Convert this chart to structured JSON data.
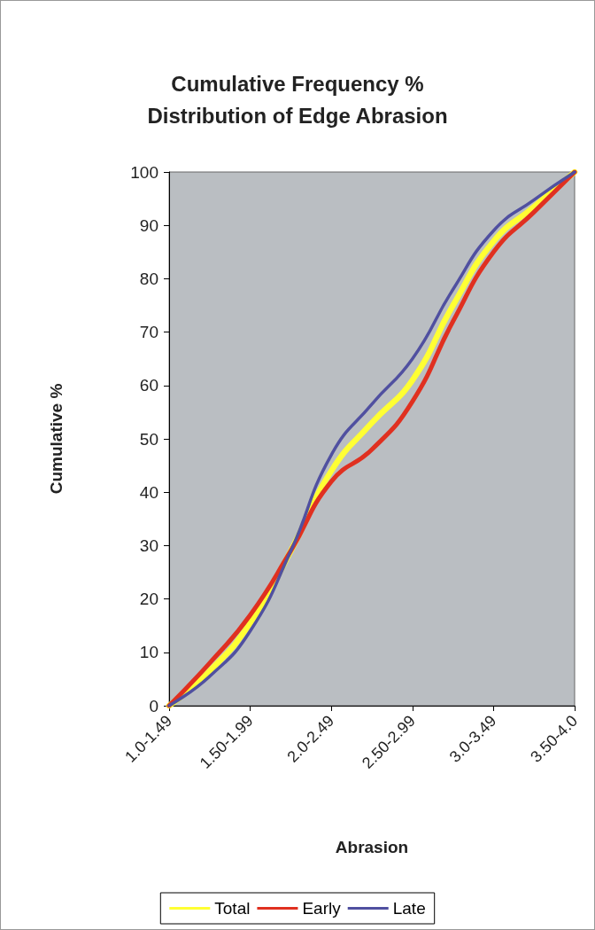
{
  "chart_data": {
    "type": "line",
    "title": "Cumulative Frequency %\nDistribution of Edge Abrasion",
    "xlabel": "Abrasion",
    "ylabel": "Cumulative %",
    "categories": [
      "1.0-1.49",
      null,
      "1.50-1.99",
      null,
      "2.0-2.49",
      null,
      "2.50-2.99",
      null,
      "3.0-3.49",
      null,
      "3.50-4.0"
    ],
    "series": [
      {
        "name": "Total",
        "color": "#ffff33",
        "values": [
          0,
          6.5,
          15.5,
          29,
          44,
          53,
          61,
          75,
          87,
          93.5,
          100
        ]
      },
      {
        "name": "Early",
        "color": "#e03020",
        "values": [
          0,
          8,
          17,
          29,
          42,
          48,
          57,
          72,
          85,
          92.5,
          100
        ]
      },
      {
        "name": "Late",
        "color": "#5050a0",
        "values": [
          0,
          5.5,
          14,
          29,
          47,
          56.5,
          65,
          78,
          89,
          94.8,
          100
        ]
      }
    ],
    "ylim": [
      0,
      100
    ],
    "yticks": [
      0,
      10,
      20,
      30,
      40,
      50,
      60,
      70,
      80,
      90,
      100
    ],
    "grid": false,
    "legend": "bottom",
    "marker": "none",
    "line_style": "solid"
  }
}
